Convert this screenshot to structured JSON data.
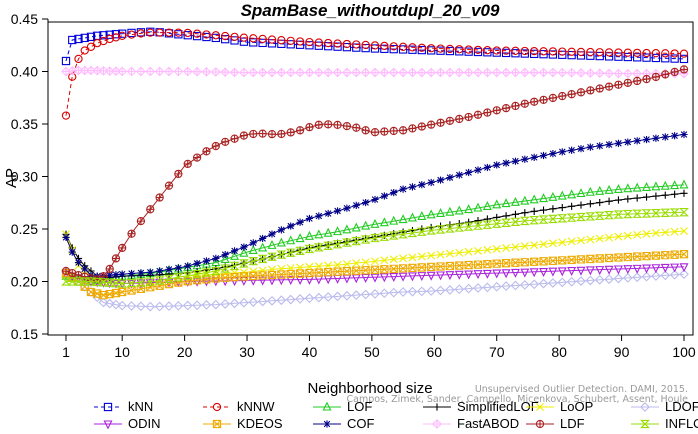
{
  "chart_data": {
    "type": "line",
    "title": "SpamBase_withoutdupl_20_v09",
    "xlabel": "Neighborhood size",
    "ylabel": "AP",
    "xlim": [
      1,
      100
    ],
    "ylim": [
      0.15,
      0.45
    ],
    "xticks": [
      1,
      10,
      20,
      30,
      40,
      50,
      60,
      70,
      80,
      90,
      100
    ],
    "yticks": [
      0.15,
      0.2,
      0.25,
      0.3,
      0.35,
      0.4,
      0.45
    ],
    "ytick_labels": [
      "0.15",
      "0.20",
      "0.25",
      "0.30",
      "0.35",
      "0.40",
      "0.45"
    ],
    "grid": false,
    "legend_position": "bottom",
    "watermark": [
      "Campos, Zimek, Sander, Campello, Micenkova, Schubert, Assent, Houle",
      "Unsupervised Outlier Detection. DAMI, 2015."
    ],
    "series": [
      {
        "name": "kNN",
        "color": "#0000dd",
        "marker": "square",
        "dashed": true,
        "points": [
          [
            1,
            0.41
          ],
          [
            2,
            0.43
          ],
          [
            4,
            0.432
          ],
          [
            6,
            0.434
          ],
          [
            8,
            0.435
          ],
          [
            10,
            0.436
          ],
          [
            12,
            0.437
          ],
          [
            15,
            0.438
          ],
          [
            18,
            0.436
          ],
          [
            25,
            0.432
          ],
          [
            30,
            0.428
          ],
          [
            40,
            0.425
          ],
          [
            50,
            0.422
          ],
          [
            60,
            0.42
          ],
          [
            70,
            0.418
          ],
          [
            80,
            0.416
          ],
          [
            90,
            0.414
          ],
          [
            100,
            0.412
          ]
        ]
      },
      {
        "name": "kNNW",
        "color": "#dd0000",
        "marker": "circle",
        "dashed": true,
        "points": [
          [
            1,
            0.358
          ],
          [
            2,
            0.395
          ],
          [
            3,
            0.412
          ],
          [
            4,
            0.42
          ],
          [
            6,
            0.427
          ],
          [
            8,
            0.431
          ],
          [
            10,
            0.434
          ],
          [
            14,
            0.437
          ],
          [
            20,
            0.437
          ],
          [
            30,
            0.432
          ],
          [
            40,
            0.428
          ],
          [
            50,
            0.425
          ],
          [
            60,
            0.422
          ],
          [
            70,
            0.42
          ],
          [
            80,
            0.419
          ],
          [
            90,
            0.418
          ],
          [
            100,
            0.417
          ]
        ]
      },
      {
        "name": "LOF",
        "color": "#22cc22",
        "marker": "triangle-up",
        "dashed": false,
        "points": [
          [
            1,
            0.205
          ],
          [
            3,
            0.203
          ],
          [
            5,
            0.2
          ],
          [
            7,
            0.202
          ],
          [
            10,
            0.205
          ],
          [
            15,
            0.208
          ],
          [
            20,
            0.213
          ],
          [
            25,
            0.218
          ],
          [
            30,
            0.228
          ],
          [
            35,
            0.236
          ],
          [
            40,
            0.243
          ],
          [
            45,
            0.248
          ],
          [
            50,
            0.254
          ],
          [
            55,
            0.259
          ],
          [
            60,
            0.264
          ],
          [
            65,
            0.268
          ],
          [
            70,
            0.273
          ],
          [
            75,
            0.277
          ],
          [
            80,
            0.281
          ],
          [
            85,
            0.285
          ],
          [
            90,
            0.288
          ],
          [
            95,
            0.29
          ],
          [
            100,
            0.292
          ]
        ]
      },
      {
        "name": "SimplifiedLOF",
        "color": "#000000",
        "marker": "plus",
        "dashed": false,
        "points": [
          [
            1,
            0.245
          ],
          [
            2,
            0.232
          ],
          [
            3,
            0.222
          ],
          [
            4,
            0.215
          ],
          [
            5,
            0.21
          ],
          [
            6,
            0.205
          ],
          [
            8,
            0.204
          ],
          [
            10,
            0.205
          ],
          [
            15,
            0.206
          ],
          [
            20,
            0.208
          ],
          [
            25,
            0.212
          ],
          [
            30,
            0.218
          ],
          [
            35,
            0.225
          ],
          [
            40,
            0.232
          ],
          [
            45,
            0.237
          ],
          [
            50,
            0.242
          ],
          [
            55,
            0.247
          ],
          [
            60,
            0.252
          ],
          [
            65,
            0.256
          ],
          [
            70,
            0.261
          ],
          [
            75,
            0.266
          ],
          [
            80,
            0.27
          ],
          [
            85,
            0.274
          ],
          [
            90,
            0.278
          ],
          [
            95,
            0.281
          ],
          [
            100,
            0.284
          ]
        ]
      },
      {
        "name": "LoOP",
        "color": "#eeee00",
        "marker": "x",
        "dashed": false,
        "points": [
          [
            1,
            0.245
          ],
          [
            3,
            0.215
          ],
          [
            5,
            0.205
          ],
          [
            7,
            0.2
          ],
          [
            10,
            0.198
          ],
          [
            15,
            0.2
          ],
          [
            20,
            0.205
          ],
          [
            25,
            0.207
          ],
          [
            30,
            0.209
          ],
          [
            35,
            0.212
          ],
          [
            40,
            0.214
          ],
          [
            45,
            0.216
          ],
          [
            50,
            0.219
          ],
          [
            55,
            0.222
          ],
          [
            60,
            0.225
          ],
          [
            65,
            0.228
          ],
          [
            70,
            0.231
          ],
          [
            75,
            0.234
          ],
          [
            80,
            0.237
          ],
          [
            85,
            0.24
          ],
          [
            90,
            0.243
          ],
          [
            95,
            0.246
          ],
          [
            100,
            0.248
          ]
        ]
      },
      {
        "name": "LDOF",
        "color": "#bbbbee",
        "marker": "diamond",
        "dashed": false,
        "points": [
          [
            1,
            0.21
          ],
          [
            3,
            0.2
          ],
          [
            5,
            0.19
          ],
          [
            7,
            0.18
          ],
          [
            10,
            0.177
          ],
          [
            15,
            0.176
          ],
          [
            20,
            0.177
          ],
          [
            25,
            0.178
          ],
          [
            30,
            0.18
          ],
          [
            35,
            0.182
          ],
          [
            40,
            0.184
          ],
          [
            45,
            0.186
          ],
          [
            50,
            0.188
          ],
          [
            55,
            0.19
          ],
          [
            60,
            0.191
          ],
          [
            65,
            0.193
          ],
          [
            70,
            0.195
          ],
          [
            75,
            0.197
          ],
          [
            80,
            0.199
          ],
          [
            85,
            0.201
          ],
          [
            90,
            0.203
          ],
          [
            95,
            0.205
          ],
          [
            100,
            0.207
          ]
        ]
      },
      {
        "name": "ODIN",
        "color": "#aa22dd",
        "marker": "triangle-down",
        "dashed": false,
        "points": [
          [
            1,
            0.207
          ],
          [
            5,
            0.2
          ],
          [
            10,
            0.198
          ],
          [
            15,
            0.199
          ],
          [
            20,
            0.2
          ],
          [
            30,
            0.201
          ],
          [
            40,
            0.202
          ],
          [
            50,
            0.204
          ],
          [
            60,
            0.206
          ],
          [
            70,
            0.208
          ],
          [
            80,
            0.21
          ],
          [
            90,
            0.212
          ],
          [
            100,
            0.214
          ]
        ]
      },
      {
        "name": "KDEOS",
        "color": "#eeaa00",
        "marker": "square-x",
        "dashed": false,
        "points": [
          [
            1,
            0.208
          ],
          [
            3,
            0.2
          ],
          [
            5,
            0.19
          ],
          [
            7,
            0.187
          ],
          [
            10,
            0.19
          ],
          [
            15,
            0.195
          ],
          [
            20,
            0.2
          ],
          [
            25,
            0.203
          ],
          [
            30,
            0.205
          ],
          [
            40,
            0.208
          ],
          [
            50,
            0.211
          ],
          [
            60,
            0.214
          ],
          [
            70,
            0.217
          ],
          [
            80,
            0.22
          ],
          [
            90,
            0.223
          ],
          [
            100,
            0.226
          ]
        ]
      },
      {
        "name": "COF",
        "color": "#000088",
        "marker": "star",
        "dashed": false,
        "points": [
          [
            1,
            0.242
          ],
          [
            2,
            0.228
          ],
          [
            3,
            0.218
          ],
          [
            4,
            0.212
          ],
          [
            5,
            0.206
          ],
          [
            6,
            0.205
          ],
          [
            8,
            0.206
          ],
          [
            10,
            0.207
          ],
          [
            15,
            0.209
          ],
          [
            20,
            0.214
          ],
          [
            25,
            0.222
          ],
          [
            30,
            0.234
          ],
          [
            35,
            0.248
          ],
          [
            40,
            0.26
          ],
          [
            45,
            0.268
          ],
          [
            50,
            0.277
          ],
          [
            55,
            0.288
          ],
          [
            60,
            0.295
          ],
          [
            65,
            0.303
          ],
          [
            70,
            0.311
          ],
          [
            75,
            0.317
          ],
          [
            80,
            0.323
          ],
          [
            85,
            0.328
          ],
          [
            90,
            0.332
          ],
          [
            95,
            0.336
          ],
          [
            100,
            0.34
          ]
        ]
      },
      {
        "name": "FastABOD",
        "color": "#ffbbff",
        "marker": "diamond-plus",
        "dashed": false,
        "points": [
          [
            1,
            0.4
          ],
          [
            3,
            0.401
          ],
          [
            5,
            0.401
          ],
          [
            10,
            0.4
          ],
          [
            20,
            0.4
          ],
          [
            30,
            0.399
          ],
          [
            40,
            0.399
          ],
          [
            50,
            0.399
          ],
          [
            60,
            0.399
          ],
          [
            70,
            0.399
          ],
          [
            80,
            0.399
          ],
          [
            90,
            0.398
          ],
          [
            100,
            0.398
          ]
        ]
      },
      {
        "name": "LDF",
        "color": "#aa2222",
        "marker": "circle-plus",
        "dashed": false,
        "points": [
          [
            1,
            0.21
          ],
          [
            3,
            0.206
          ],
          [
            5,
            0.203
          ],
          [
            6,
            0.202
          ],
          [
            7,
            0.205
          ],
          [
            8,
            0.212
          ],
          [
            9,
            0.222
          ],
          [
            10,
            0.232
          ],
          [
            12,
            0.25
          ],
          [
            14,
            0.265
          ],
          [
            16,
            0.28
          ],
          [
            18,
            0.295
          ],
          [
            20,
            0.31
          ],
          [
            22,
            0.318
          ],
          [
            24,
            0.326
          ],
          [
            26,
            0.332
          ],
          [
            28,
            0.336
          ],
          [
            30,
            0.34
          ],
          [
            32,
            0.341
          ],
          [
            35,
            0.34
          ],
          [
            38,
            0.343
          ],
          [
            40,
            0.347
          ],
          [
            42,
            0.35
          ],
          [
            45,
            0.349
          ],
          [
            48,
            0.346
          ],
          [
            50,
            0.342
          ],
          [
            55,
            0.344
          ],
          [
            60,
            0.35
          ],
          [
            65,
            0.356
          ],
          [
            70,
            0.363
          ],
          [
            75,
            0.37
          ],
          [
            80,
            0.376
          ],
          [
            85,
            0.382
          ],
          [
            90,
            0.388
          ],
          [
            95,
            0.394
          ],
          [
            100,
            0.402
          ]
        ]
      },
      {
        "name": "INFLO",
        "color": "#99dd00",
        "marker": "hourglass",
        "dashed": false,
        "points": [
          [
            1,
            0.2
          ],
          [
            5,
            0.2
          ],
          [
            10,
            0.198
          ],
          [
            15,
            0.2
          ],
          [
            20,
            0.205
          ],
          [
            25,
            0.21
          ],
          [
            30,
            0.218
          ],
          [
            35,
            0.225
          ],
          [
            40,
            0.231
          ],
          [
            45,
            0.236
          ],
          [
            50,
            0.241
          ],
          [
            55,
            0.245
          ],
          [
            60,
            0.249
          ],
          [
            65,
            0.252
          ],
          [
            70,
            0.255
          ],
          [
            75,
            0.258
          ],
          [
            80,
            0.26
          ],
          [
            85,
            0.262
          ],
          [
            90,
            0.264
          ],
          [
            95,
            0.265
          ],
          [
            100,
            0.266
          ]
        ]
      }
    ]
  }
}
